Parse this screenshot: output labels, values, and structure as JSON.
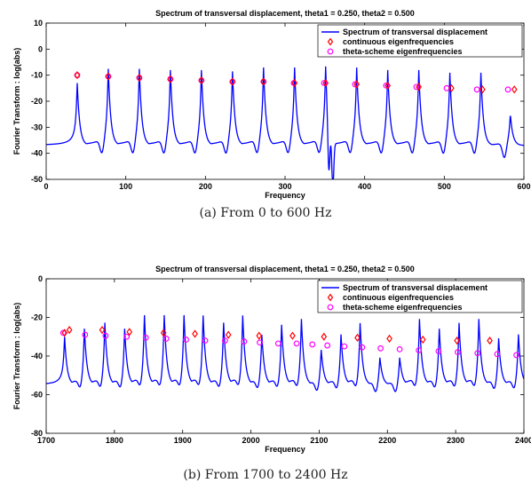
{
  "chart_data": [
    {
      "type": "line",
      "title": "Spectrum of transversal displacement, theta1 = 0.250, theta2 = 0.500",
      "xlabel": "Frequency",
      "ylabel": "Fourier Transform : log(abs)",
      "xlim": [
        0,
        600
      ],
      "ylim": [
        -50,
        10
      ],
      "xticks": [
        "0",
        "100",
        "200",
        "300",
        "400",
        "500",
        "600"
      ],
      "yticks": [
        "10",
        "0",
        "-10",
        "-20",
        "-30",
        "-40",
        "-50"
      ],
      "caption": "(a)  From 0 to 600 Hz",
      "legend_position": "top-right",
      "series": [
        {
          "name": "Spectrum of transversal displacement",
          "color": "#0000ff",
          "style": "line",
          "peaks": [
            39,
            78,
            117,
            156,
            195,
            234,
            273,
            312,
            351,
            390,
            429,
            468,
            507,
            546,
            583
          ],
          "peak_values": [
            -13,
            -7.5,
            -7.5,
            -8,
            -8,
            -8.5,
            -7,
            -7,
            -6.5,
            -7,
            -8,
            -8,
            -9,
            -9,
            -25
          ],
          "antiresonances": [
            [
              355,
              -50
            ],
            [
              360,
              -50
            ]
          ],
          "baseline": -37
        },
        {
          "name": "continuous eigenfrequencies",
          "color": "#ff0000",
          "style": "diamond",
          "x": [
            39,
            78,
            117,
            156,
            195,
            234,
            273,
            312,
            351,
            390,
            429,
            468,
            509,
            548,
            588
          ],
          "y": [
            -10,
            -10.5,
            -11,
            -11.5,
            -12,
            -12.5,
            -12.5,
            -13,
            -13,
            -13.5,
            -14,
            -14.5,
            -15,
            -15.5,
            -15.5
          ]
        },
        {
          "name": "theta-scheme eigenfrequencies",
          "color": "#ff00ff",
          "style": "circle",
          "x": [
            39,
            78,
            117,
            156,
            195,
            234,
            273,
            311,
            349,
            388,
            427,
            465,
            503,
            541,
            580
          ],
          "y": [
            -10,
            -10.5,
            -11,
            -11.5,
            -12,
            -12.5,
            -12.5,
            -13,
            -13,
            -13.5,
            -14,
            -14.5,
            -15,
            -15.5,
            -15.5
          ]
        }
      ]
    },
    {
      "type": "line",
      "title": "Spectrum of transversal displacement, theta1 = 0.250, theta2 = 0.500",
      "xlabel": "Frequency",
      "ylabel": "Fourier Transform : log(abs)",
      "xlim": [
        1700,
        2400
      ],
      "ylim": [
        -80,
        0
      ],
      "xticks": [
        "1700",
        "1800",
        "1900",
        "2000",
        "2100",
        "2200",
        "2300",
        "2400"
      ],
      "yticks": [
        "0",
        "-20",
        "-40",
        "-60",
        "-80"
      ],
      "caption": "(b)  From 1700 to 2400 Hz",
      "legend_position": "top-right",
      "series": [
        {
          "name": "Spectrum of transversal displacement",
          "color": "#0000ff",
          "style": "line",
          "peaks": [
            1727,
            1756,
            1786,
            1815,
            1844,
            1873,
            1902,
            1930,
            1960,
            1988,
            2016,
            2045,
            2074,
            2103,
            2132,
            2160,
            2189,
            2218,
            2247,
            2276,
            2305,
            2334,
            2363,
            2392
          ],
          "peak_values": [
            -30,
            -25,
            -22,
            -25,
            -18,
            -18,
            -18,
            -18,
            -22,
            -18,
            -28,
            -23,
            -20,
            -36,
            -28,
            -22,
            -40,
            -40,
            -20,
            -25,
            -22,
            -20,
            -30,
            -28
          ],
          "baseline": -55
        },
        {
          "name": "continuous eigenfrequencies",
          "color": "#ff0000",
          "style": "diamond",
          "x": [
            1727,
            1734,
            1782,
            1822,
            1872,
            1918,
            1967,
            2012,
            2061,
            2107,
            2156,
            2203,
            2252,
            2302,
            2350
          ],
          "y": [
            -28,
            -26.5,
            -26.5,
            -27.5,
            -28,
            -28.5,
            -29,
            -29.5,
            -29.5,
            -30,
            -30.5,
            -31,
            -31.5,
            -32,
            -32
          ]
        },
        {
          "name": "theta-scheme eigenfrequencies",
          "color": "#ff00ff",
          "style": "circle",
          "x": [
            1725,
            1757,
            1787,
            1818,
            1846,
            1876,
            1905,
            1933,
            1962,
            1990,
            2013,
            2040,
            2067,
            2090,
            2112,
            2137,
            2163,
            2190,
            2218,
            2246,
            2275,
            2303,
            2332,
            2361,
            2389
          ],
          "y": [
            -28,
            -29,
            -29.5,
            -30,
            -30.5,
            -31,
            -31.5,
            -32,
            -32,
            -32.5,
            -33,
            -33.5,
            -33.5,
            -34,
            -34.5,
            -35,
            -35.5,
            -36,
            -36.5,
            -37,
            -37.5,
            -38,
            -38.5,
            -39,
            -39.5
          ]
        }
      ]
    }
  ]
}
